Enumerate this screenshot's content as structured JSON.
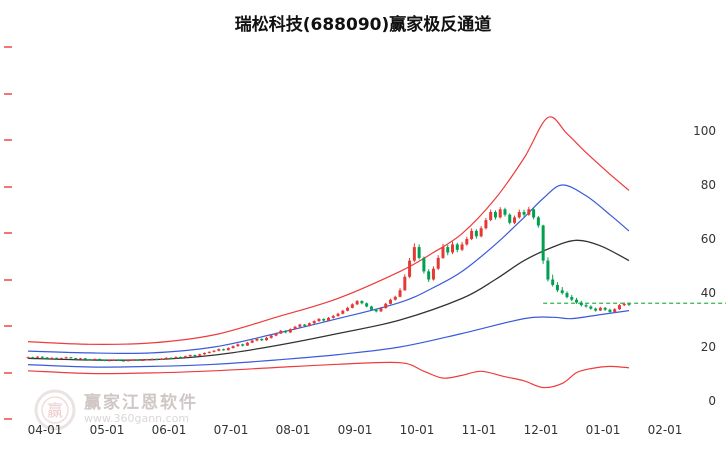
{
  "title": "瑞松科技(688090)赢家极反通道",
  "watermark": {
    "brand": "赢家江恩软件",
    "url": "www.360gann.com",
    "logo_char": "赢"
  },
  "colors": {
    "up_candle": "#e53935",
    "down_candle": "#00a050",
    "red_line": "#ee3b3b",
    "blue_line": "#3a5bdb",
    "black_line": "#333333",
    "green_line": "#2db84d",
    "axis_text": "#333333",
    "title_text": "#111111"
  },
  "axes": {
    "left_tick_ys": [
      47,
      94,
      140,
      187,
      233,
      280,
      326,
      373,
      419
    ]
  },
  "chart_data": {
    "type": "candlestick",
    "title": "瑞松科技(688090)赢家极反通道",
    "xlabel": "",
    "ylabel": "",
    "ylim": [
      0,
      110
    ],
    "grid": false,
    "legend": false,
    "x_ticks": [
      "04-01",
      "05-01",
      "06-01",
      "07-01",
      "08-01",
      "09-01",
      "10-01",
      "11-01",
      "12-01",
      "01-01",
      "02-01"
    ],
    "y_ticks": [
      0,
      20,
      40,
      60,
      80,
      100
    ],
    "candles_ohlc": [
      [
        16.0,
        16.5,
        15.8,
        16.2
      ],
      [
        16.2,
        16.4,
        15.8,
        16.0
      ],
      [
        16.0,
        16.6,
        15.9,
        16.4
      ],
      [
        16.4,
        16.6,
        15.9,
        16.1
      ],
      [
        16.1,
        16.3,
        15.6,
        15.8
      ],
      [
        15.8,
        16.2,
        15.6,
        16.0
      ],
      [
        16.0,
        16.1,
        15.5,
        15.7
      ],
      [
        15.7,
        16.1,
        15.5,
        15.9
      ],
      [
        15.9,
        16.4,
        15.7,
        16.2
      ],
      [
        16.2,
        16.3,
        15.7,
        15.9
      ],
      [
        15.9,
        16.0,
        15.4,
        15.6
      ],
      [
        15.6,
        16.0,
        15.4,
        15.8
      ],
      [
        15.8,
        15.9,
        15.3,
        15.5
      ],
      [
        15.5,
        15.6,
        15.1,
        15.3
      ],
      [
        15.3,
        15.7,
        15.1,
        15.6
      ],
      [
        15.6,
        15.7,
        15.0,
        15.2
      ],
      [
        15.2,
        15.3,
        14.7,
        14.9
      ],
      [
        14.9,
        15.3,
        14.7,
        15.1
      ],
      [
        15.1,
        15.5,
        14.9,
        15.4
      ],
      [
        15.4,
        15.5,
        14.8,
        15.0
      ],
      [
        15.0,
        15.1,
        14.6,
        14.8
      ],
      [
        14.8,
        15.2,
        14.6,
        15.1
      ],
      [
        15.1,
        15.5,
        14.9,
        15.3
      ],
      [
        15.3,
        15.4,
        14.8,
        15.0
      ],
      [
        15.0,
        15.4,
        14.8,
        15.2
      ],
      [
        15.2,
        15.6,
        15.0,
        15.4
      ],
      [
        15.4,
        15.8,
        15.2,
        15.6
      ],
      [
        15.6,
        15.7,
        15.1,
        15.3
      ],
      [
        15.3,
        15.9,
        15.2,
        15.7
      ],
      [
        15.7,
        16.2,
        15.5,
        16.0
      ],
      [
        16.0,
        16.2,
        15.6,
        15.8
      ],
      [
        15.8,
        16.5,
        15.7,
        16.3
      ],
      [
        16.3,
        16.5,
        15.9,
        16.1
      ],
      [
        16.1,
        16.8,
        16.0,
        16.6
      ],
      [
        16.6,
        17.2,
        16.4,
        17.0
      ],
      [
        17.0,
        17.2,
        16.5,
        16.7
      ],
      [
        16.7,
        17.5,
        16.6,
        17.3
      ],
      [
        17.3,
        18.0,
        17.1,
        17.8
      ],
      [
        17.8,
        18.4,
        17.6,
        18.2
      ],
      [
        18.2,
        18.9,
        18.0,
        18.6
      ],
      [
        18.6,
        19.5,
        18.4,
        19.2
      ],
      [
        19.2,
        19.4,
        18.6,
        18.8
      ],
      [
        18.8,
        19.9,
        18.7,
        19.6
      ],
      [
        19.6,
        20.6,
        19.4,
        20.3
      ],
      [
        20.3,
        21.3,
        20.1,
        21.0
      ],
      [
        21.0,
        21.2,
        20.2,
        20.5
      ],
      [
        20.5,
        21.9,
        20.4,
        21.6
      ],
      [
        21.6,
        22.7,
        21.4,
        22.4
      ],
      [
        22.4,
        23.3,
        22.1,
        23.0
      ],
      [
        23.0,
        23.2,
        22.2,
        22.5
      ],
      [
        22.5,
        23.7,
        22.3,
        23.4
      ],
      [
        23.4,
        24.5,
        23.1,
        24.2
      ],
      [
        24.2,
        25.3,
        24.0,
        25.0
      ],
      [
        25.0,
        26.3,
        24.8,
        26.0
      ],
      [
        26.0,
        26.2,
        25.1,
        25.4
      ],
      [
        25.4,
        26.9,
        25.2,
        26.6
      ],
      [
        26.6,
        27.8,
        26.4,
        27.5
      ],
      [
        27.5,
        28.6,
        27.2,
        28.3
      ],
      [
        28.3,
        28.5,
        27.5,
        27.8
      ],
      [
        27.8,
        29.1,
        27.6,
        28.8
      ],
      [
        28.8,
        29.9,
        28.5,
        29.6
      ],
      [
        29.6,
        30.7,
        29.3,
        30.4
      ],
      [
        30.4,
        30.6,
        29.4,
        29.8
      ],
      [
        29.8,
        31.1,
        29.6,
        30.8
      ],
      [
        30.8,
        31.9,
        30.5,
        31.5
      ],
      [
        31.5,
        32.7,
        31.2,
        32.3
      ],
      [
        32.3,
        33.8,
        32.1,
        33.4
      ],
      [
        33.4,
        34.9,
        33.2,
        34.5
      ],
      [
        34.5,
        36.2,
        34.3,
        35.8
      ],
      [
        35.8,
        37.4,
        35.5,
        37.0
      ],
      [
        37.0,
        37.3,
        35.8,
        36.2
      ],
      [
        36.2,
        36.5,
        34.7,
        35.0
      ],
      [
        35.0,
        35.3,
        33.5,
        33.8
      ],
      [
        33.8,
        34.2,
        32.8,
        33.2
      ],
      [
        33.2,
        34.8,
        33.0,
        34.4
      ],
      [
        34.4,
        36.4,
        34.2,
        36.0
      ],
      [
        36.0,
        37.9,
        35.8,
        37.5
      ],
      [
        37.5,
        39.0,
        37.2,
        38.6
      ],
      [
        38.6,
        41.8,
        38.4,
        41.0
      ],
      [
        41.0,
        46.9,
        40.8,
        46.0
      ],
      [
        46.0,
        53.0,
        45.5,
        52.0
      ],
      [
        52.0,
        58.4,
        51.5,
        57.0
      ],
      [
        57.0,
        58.0,
        52.4,
        53.0
      ],
      [
        53.0,
        53.5,
        47.2,
        48.0
      ],
      [
        48.0,
        48.8,
        44.1,
        45.0
      ],
      [
        45.0,
        49.9,
        44.6,
        49.0
      ],
      [
        49.0,
        54.0,
        48.5,
        53.0
      ],
      [
        53.0,
        58.2,
        52.6,
        57.0
      ],
      [
        57.0,
        57.8,
        54.0,
        55.0
      ],
      [
        55.0,
        59.0,
        54.4,
        58.0
      ],
      [
        58.0,
        58.6,
        55.1,
        56.0
      ],
      [
        56.0,
        58.9,
        55.5,
        58.0
      ],
      [
        58.0,
        60.8,
        57.5,
        60.0
      ],
      [
        60.0,
        63.9,
        59.6,
        63.0
      ],
      [
        63.0,
        63.6,
        60.2,
        61.0
      ],
      [
        61.0,
        64.8,
        60.6,
        64.0
      ],
      [
        64.0,
        67.8,
        63.5,
        67.0
      ],
      [
        67.0,
        70.9,
        66.6,
        70.0
      ],
      [
        70.0,
        70.6,
        67.2,
        68.0
      ],
      [
        68.0,
        71.8,
        67.6,
        71.0
      ],
      [
        71.0,
        71.6,
        68.3,
        69.0
      ],
      [
        69.0,
        69.5,
        65.4,
        66.0
      ],
      [
        66.0,
        68.7,
        65.5,
        68.0
      ],
      [
        68.0,
        70.9,
        67.5,
        70.0
      ],
      [
        70.0,
        70.8,
        68.3,
        69.0
      ],
      [
        69.0,
        71.9,
        68.6,
        71.0
      ],
      [
        71.0,
        71.5,
        67.3,
        68.0
      ],
      [
        68.0,
        68.5,
        64.2,
        65.0
      ],
      [
        65.0,
        65.3,
        50.8,
        52.0
      ],
      [
        52.0,
        53.2,
        44.3,
        45.0
      ],
      [
        45.0,
        46.8,
        42.4,
        43.0
      ],
      [
        43.0,
        44.0,
        40.3,
        41.0
      ],
      [
        41.0,
        42.2,
        39.4,
        40.0
      ],
      [
        40.0,
        40.6,
        38.0,
        38.5
      ],
      [
        38.5,
        39.3,
        37.0,
        37.5
      ],
      [
        37.5,
        38.2,
        36.0,
        36.5
      ],
      [
        36.5,
        37.1,
        35.0,
        35.5
      ],
      [
        35.5,
        36.2,
        34.6,
        35.0
      ],
      [
        35.0,
        35.4,
        33.8,
        34.2
      ],
      [
        34.2,
        34.6,
        33.1,
        33.5
      ],
      [
        33.5,
        34.9,
        33.3,
        34.5
      ],
      [
        34.5,
        34.8,
        33.4,
        33.8
      ],
      [
        33.8,
        34.2,
        32.6,
        33.0
      ],
      [
        33.0,
        34.4,
        32.8,
        34.0
      ],
      [
        34.0,
        35.9,
        33.7,
        35.5
      ],
      [
        35.5,
        36.5,
        35.1,
        36.0
      ],
      [
        36.0,
        36.3,
        35.2,
        35.8
      ]
    ],
    "channel_lines": [
      {
        "name": "upper-outer-red",
        "color": "red_line",
        "w": 1.2,
        "i": [
          0,
          13,
          26,
          39,
          52,
          65,
          78,
          85,
          91,
          98,
          104,
          109,
          113,
          117,
          122,
          126
        ],
        "v": [
          22,
          21,
          21.5,
          24.5,
          31,
          38,
          48,
          55,
          62,
          75,
          90,
          105,
          99,
          92,
          84,
          78
        ]
      },
      {
        "name": "upper-inner-blue",
        "color": "blue_line",
        "w": 1.2,
        "i": [
          0,
          13,
          26,
          39,
          52,
          65,
          78,
          85,
          91,
          98,
          104,
          108,
          112,
          117,
          122,
          126
        ],
        "v": [
          18.5,
          17.8,
          17.8,
          20,
          25,
          30.5,
          36.5,
          42,
          48,
          58,
          68,
          75,
          80,
          76,
          69,
          63
        ]
      },
      {
        "name": "middle-black",
        "color": "black_line",
        "w": 1.3,
        "i": [
          0,
          13,
          26,
          39,
          52,
          65,
          78,
          91,
          98,
          104,
          110,
          115,
          120,
          126
        ],
        "v": [
          15.8,
          15.2,
          15.3,
          17,
          20.5,
          25,
          30,
          38,
          45,
          52,
          57,
          59.5,
          57.5,
          52
        ]
      },
      {
        "name": "lower-inner-blue",
        "color": "blue_line",
        "w": 1.2,
        "i": [
          0,
          13,
          26,
          39,
          52,
          65,
          78,
          91,
          104,
          110,
          114,
          120,
          126
        ],
        "v": [
          13.5,
          12.6,
          12.8,
          13.6,
          15.2,
          17.2,
          20,
          25,
          30.5,
          31,
          30.5,
          32,
          33.5
        ]
      },
      {
        "name": "lower-outer-red",
        "color": "red_line",
        "w": 1.2,
        "i": [
          0,
          13,
          26,
          39,
          52,
          65,
          78,
          83,
          87,
          91,
          95,
          100,
          104,
          108,
          112,
          115,
          118,
          122,
          126
        ],
        "v": [
          11.2,
          10.2,
          10.4,
          11.2,
          12.4,
          13.6,
          14.2,
          11,
          8.5,
          9.5,
          11,
          9,
          7.5,
          5,
          6.5,
          10.5,
          12,
          12.8,
          12.3
        ]
      }
    ],
    "current_price_line": {
      "value": 36.2,
      "start_index": 108,
      "style": "dashed",
      "color": "green_line"
    }
  }
}
